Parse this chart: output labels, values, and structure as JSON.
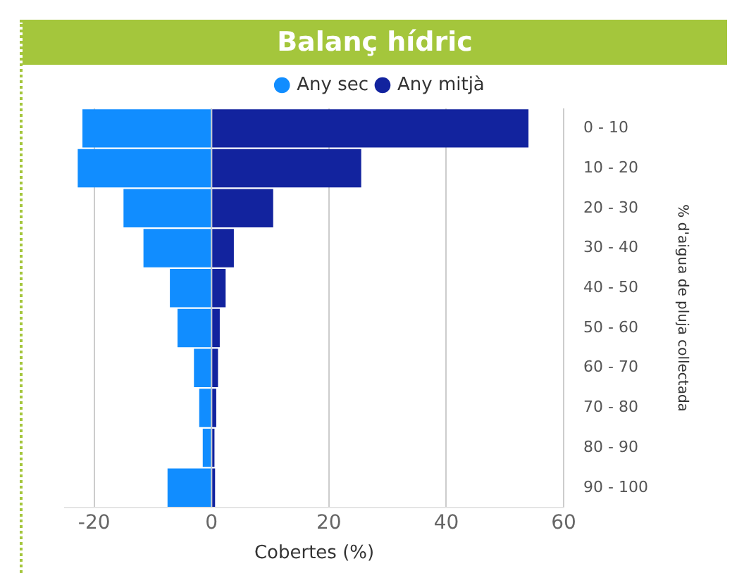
{
  "chart_data": {
    "type": "bar",
    "orientation": "horizontal",
    "stacked": true,
    "title": "Balanç hídric",
    "xlabel": "Cobertes (%)",
    "ylabel": "% d'aigua de pluja collectada",
    "categories": [
      "0 - 10",
      "10 - 20",
      "20 - 30",
      "30 - 40",
      "40 - 50",
      "50 - 60",
      "60 - 70",
      "70 - 80",
      "80 - 90",
      "90 - 100"
    ],
    "series": [
      {
        "name": "Any sec",
        "color": "#118dff",
        "values": [
          -22,
          -22.8,
          -15,
          -11.6,
          -7.1,
          -5.8,
          -3,
          -2.1,
          -1.5,
          -7.5
        ]
      },
      {
        "name": "Any mitjà",
        "color": "#12239e",
        "values": [
          54,
          25.5,
          10.5,
          3.8,
          2.4,
          1.4,
          1.1,
          0.8,
          0.5,
          0.6
        ]
      }
    ],
    "xlim": [
      -25,
      60
    ],
    "xticks": [
      -20,
      0,
      20,
      40,
      60
    ],
    "grid": "x",
    "legend": "top"
  }
}
